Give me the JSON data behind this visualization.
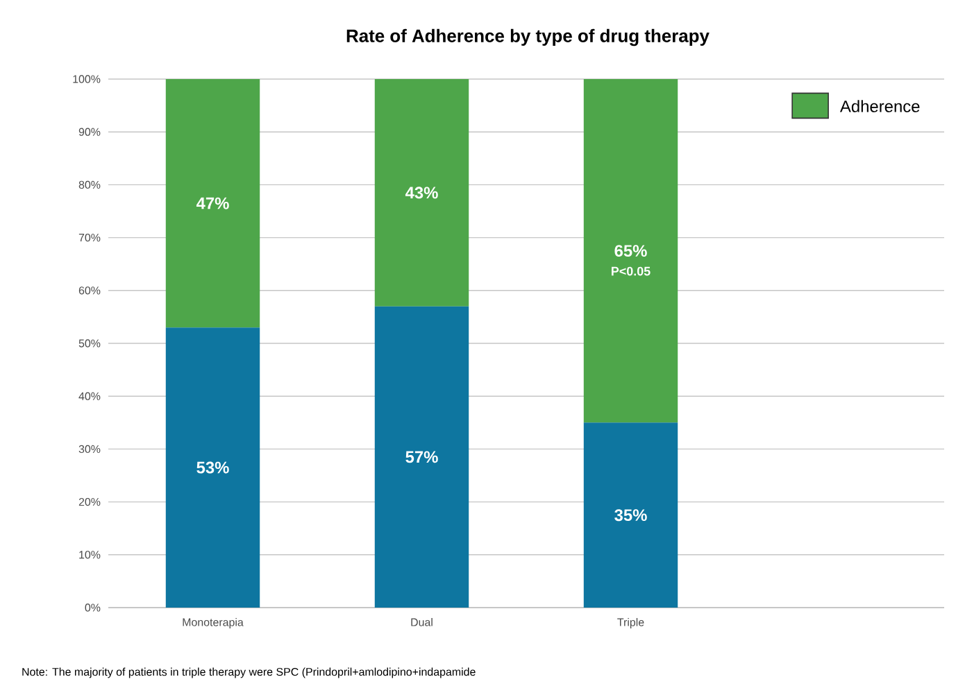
{
  "chart_data": {
    "type": "bar",
    "stacked": true,
    "title": "Rate of Adherence by type of drug therapy",
    "categories": [
      "Monoterapia",
      "Dual",
      "Triple"
    ],
    "series": [
      {
        "color": "#0e76a0",
        "values": [
          53,
          57,
          35
        ],
        "value_labels": [
          "53%",
          "57%",
          "35%"
        ]
      },
      {
        "name": "Adherence",
        "color": "#4ea64a",
        "values": [
          47,
          43,
          65
        ],
        "value_labels": [
          "47%",
          "43%",
          "65%"
        ]
      }
    ],
    "ylim": [
      0,
      100
    ],
    "yticks": [
      {
        "value": 0,
        "label": "0%"
      },
      {
        "value": 10,
        "label": "10%"
      },
      {
        "value": 20,
        "label": "20%"
      },
      {
        "value": 30,
        "label": "30%"
      },
      {
        "value": 40,
        "label": "40%"
      },
      {
        "value": 50,
        "label": "50%"
      },
      {
        "value": 60,
        "label": "60%"
      },
      {
        "value": 70,
        "label": "70%"
      },
      {
        "value": 80,
        "label": "80%"
      },
      {
        "value": 90,
        "label": "90%"
      },
      {
        "value": 100,
        "label": "100%"
      }
    ],
    "grid": "y",
    "legend": "top right",
    "annotations": [
      "P<0.05",
      "Note: The majority of patients in triple therapy were SPC (Prindopril+amlodipino+indapamide"
    ]
  }
}
